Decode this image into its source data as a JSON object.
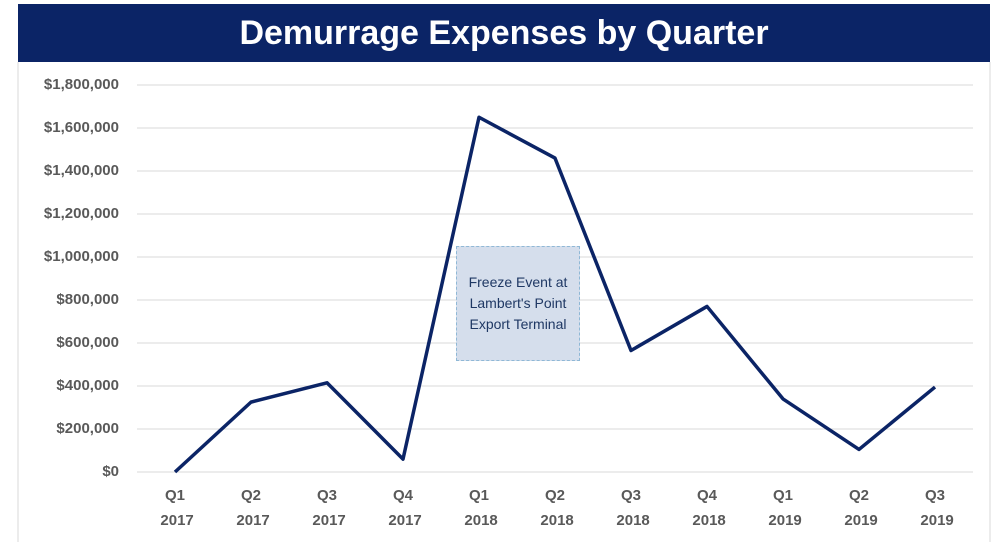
{
  "chart_data": {
    "type": "line",
    "title": "Demurrage Expenses by Quarter",
    "categories": [
      "Q1 2017",
      "Q2 2017",
      "Q3 2017",
      "Q4 2017",
      "Q1 2018",
      "Q2 2018",
      "Q3 2018",
      "Q4 2018",
      "Q1 2019",
      "Q2 2019",
      "Q3 2019"
    ],
    "values": [
      0,
      325000,
      415000,
      60000,
      1650000,
      1460000,
      565000,
      770000,
      340000,
      105000,
      395000
    ],
    "color": "#0b2466",
    "ylim": [
      0,
      1800000
    ],
    "yticks": [
      {
        "value": 0,
        "label": "$0"
      },
      {
        "value": 200000,
        "label": "$200,000"
      },
      {
        "value": 400000,
        "label": "$400,000"
      },
      {
        "value": 600000,
        "label": "$600,000"
      },
      {
        "value": 800000,
        "label": "$800,000"
      },
      {
        "value": 1000000,
        "label": "$1,000,000"
      },
      {
        "value": 1200000,
        "label": "$1,200,000"
      },
      {
        "value": 1400000,
        "label": "$1,400,000"
      },
      {
        "value": 1600000,
        "label": "$1,600,000"
      },
      {
        "value": 1800000,
        "label": "$1,800,000"
      }
    ],
    "grid": true,
    "annotation": "Freeze Event at Lambert's Point Export Terminal"
  }
}
